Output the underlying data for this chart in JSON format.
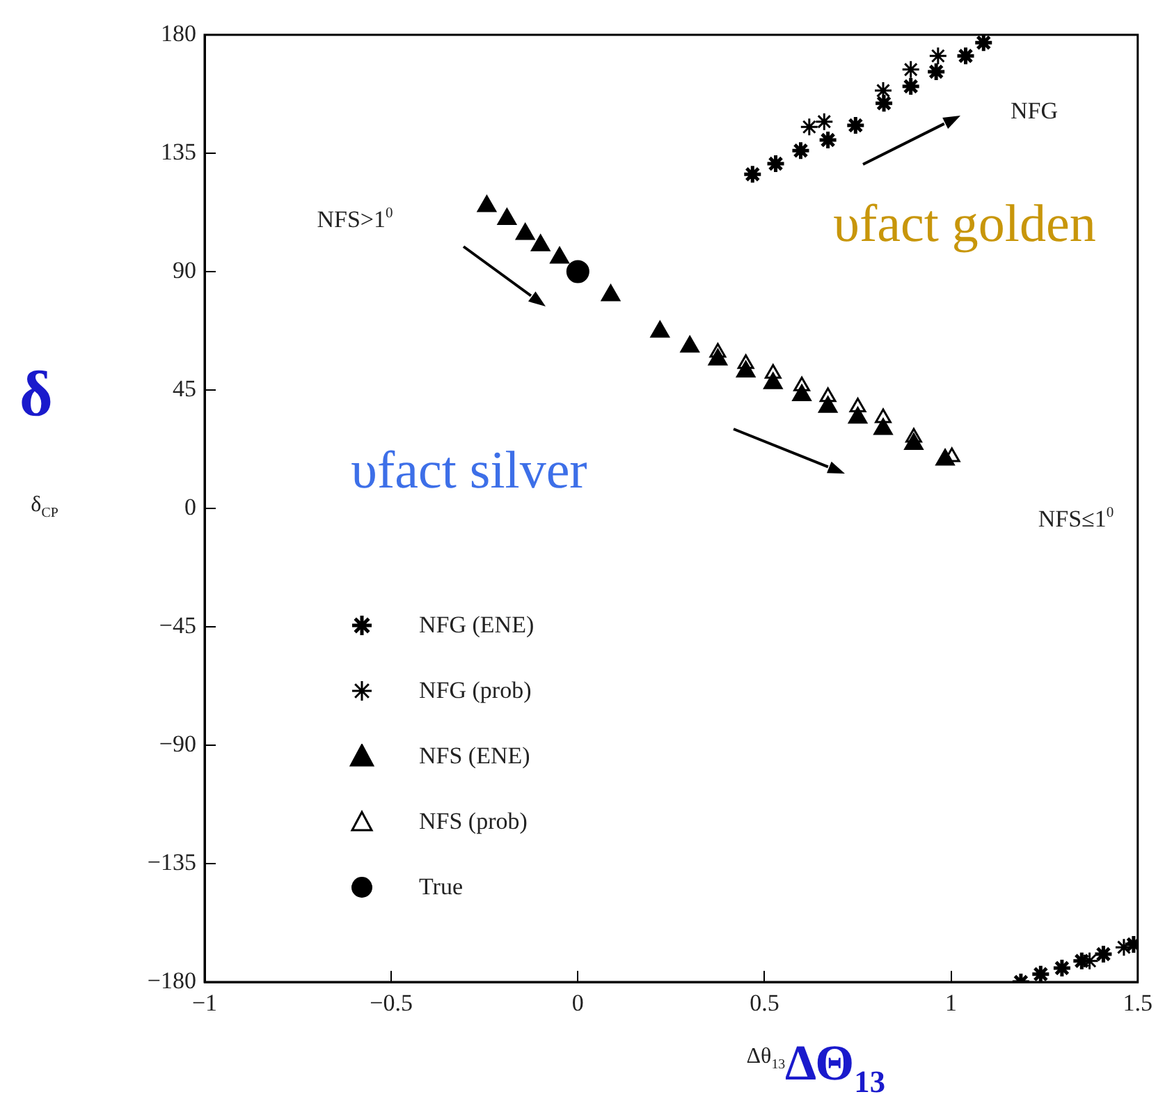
{
  "chart_data": {
    "type": "scatter",
    "xlabel": "Δθ$_{13}$",
    "ylabel": "δ$_{CP}$",
    "xlim": [
      -1,
      1.5
    ],
    "xticks": [
      {
        "value": -1,
        "label": "−1"
      },
      {
        "value": -0.5,
        "label": "−0.5"
      },
      0,
      0.5,
      1,
      1.5
    ],
    "ylim": [
      -180,
      180
    ],
    "yticks": [
      {
        "value": -180,
        "label": "−180"
      },
      {
        "value": -135,
        "label": "−135"
      },
      {
        "value": -90,
        "label": "−90"
      },
      {
        "value": -45,
        "label": "−45"
      },
      0,
      45,
      90,
      135,
      180
    ],
    "grid": false,
    "legend": "bottom left",
    "annotations": [
      "NFS>1$^{0}$",
      "NFG",
      "NFS≤1$^{0}$",
      "υfact golden",
      "υfact silver",
      "δ",
      "ΔΘ$_{13}$"
    ],
    "series": [
      {
        "name": "NFG (ENE)",
        "color": "#000000",
        "x": [
          0.468,
          0.53,
          0.597,
          0.67,
          0.744,
          0.82,
          0.892,
          0.96,
          1.039,
          1.087,
          1.187,
          1.24,
          1.297,
          1.35,
          1.408,
          1.489
        ],
        "values": [
          127,
          131,
          136,
          140,
          145.6,
          154,
          160.4,
          166,
          172,
          177,
          -180,
          -177,
          -174.7,
          -172,
          -169.4,
          -165.7
        ]
      },
      {
        "name": "NFG (prob)",
        "color": "#000000",
        "x": [
          0.62,
          0.66,
          0.818,
          0.892,
          0.965,
          1.371,
          1.463
        ],
        "values": [
          145,
          147,
          158.8,
          166.8,
          172,
          -172,
          -166.8
        ]
      },
      {
        "name": "NFS (ENE)",
        "color": "#000000",
        "marker": "triangle",
        "x": [
          -0.244,
          -0.19,
          -0.141,
          -0.1,
          -0.049,
          0.088,
          0.22,
          0.3,
          0.375,
          0.45,
          0.523,
          0.6,
          0.67,
          0.75,
          0.818,
          0.9,
          0.984
        ],
        "values": [
          114.9,
          110,
          104.3,
          100,
          95.3,
          81,
          67.2,
          61.5,
          56.6,
          52,
          47.6,
          43,
          38.6,
          34.5,
          30.2,
          24.5,
          18.5
        ]
      },
      {
        "name": "NFS (prob)",
        "color": "#000000",
        "marker": "triangle",
        "x": [
          0.375,
          0.45,
          0.523,
          0.6,
          0.67,
          0.75,
          0.818,
          0.9,
          1.002
        ],
        "values": [
          59.3,
          55,
          51.3,
          46.5,
          42.4,
          38.5,
          34.4,
          27,
          19.6
        ]
      },
      {
        "name": "True",
        "color": "#000000",
        "marker": "circle",
        "x": [
          0
        ],
        "values": [
          90
        ]
      }
    ]
  }
}
